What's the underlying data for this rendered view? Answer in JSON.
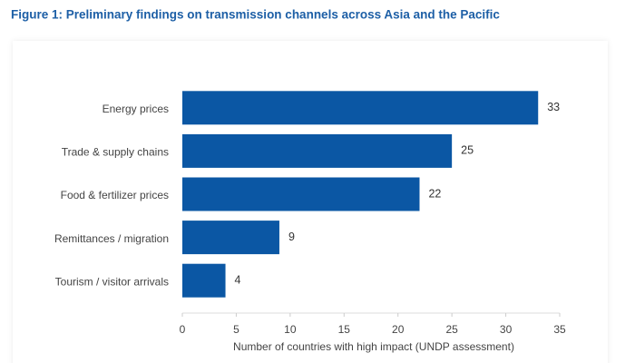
{
  "chart_data": {
    "type": "hbar",
    "title": "Figure 1: Preliminary findings on transmission channels across Asia and the Pacific",
    "x_label": "Number of countries with high impact (UNDP assessment)",
    "categories": [
      "Energy prices",
      "Trade & supply chains",
      "Food & fertilizer prices",
      "Remittances / migration",
      "Tourism / visitor arrivals"
    ],
    "values": [
      33,
      25,
      22,
      9,
      4
    ],
    "color": "#0b57a4",
    "xlim": [
      0,
      35
    ],
    "xticks": [
      0,
      5,
      10,
      15,
      20,
      25,
      30,
      35
    ],
    "grid": false
  }
}
